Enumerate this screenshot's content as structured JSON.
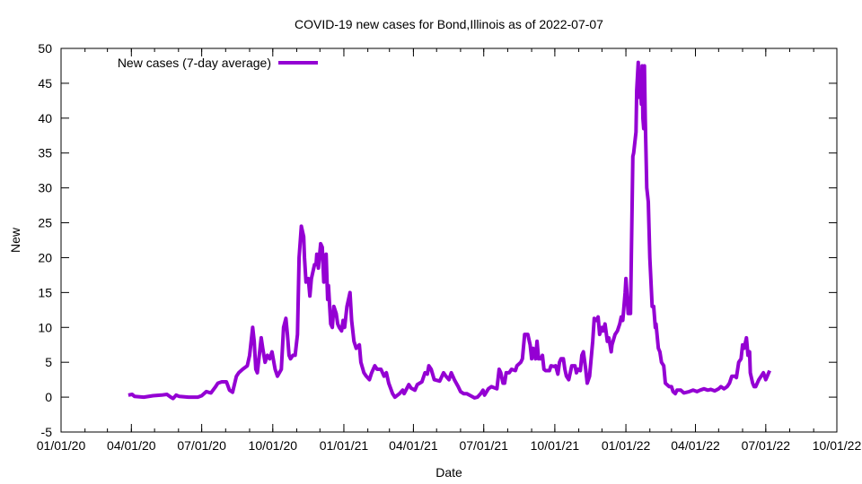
{
  "chart_data": {
    "type": "line",
    "title": "COVID-19 new cases for Bond,Illinois as of 2022-07-07",
    "xlabel": "Date",
    "ylabel": "New",
    "x_origin": "2020-01-01",
    "x_units": "days since 2020-01-01",
    "xlim": [
      0,
      1004
    ],
    "ylim": [
      -5,
      50
    ],
    "y_ticks": [
      -5,
      0,
      5,
      10,
      15,
      20,
      25,
      30,
      35,
      40,
      45,
      50
    ],
    "x_ticks": [
      {
        "label": "01/01/20",
        "day": 0
      },
      {
        "label": "04/01/20",
        "day": 91
      },
      {
        "label": "07/01/20",
        "day": 182
      },
      {
        "label": "10/01/20",
        "day": 274
      },
      {
        "label": "01/01/21",
        "day": 366
      },
      {
        "label": "04/01/21",
        "day": 456
      },
      {
        "label": "07/01/21",
        "day": 547
      },
      {
        "label": "10/01/21",
        "day": 639
      },
      {
        "label": "01/01/22",
        "day": 731
      },
      {
        "label": "04/01/22",
        "day": 821
      },
      {
        "label": "07/01/22",
        "day": 912
      },
      {
        "label": "10/01/22",
        "day": 1004
      }
    ],
    "grid": false,
    "legend_position": "top-left",
    "series": [
      {
        "name": "New cases (7-day average)",
        "color": "#9400d3",
        "x": [
          87,
          92,
          95,
          107,
          119,
          130,
          137,
          142,
          145,
          149,
          153,
          165,
          177,
          182,
          188,
          194,
          200,
          203,
          208,
          214,
          218,
          222,
          227,
          230,
          235,
          241,
          244,
          248,
          250,
          252,
          254,
          259,
          261,
          264,
          267,
          270,
          273,
          277,
          280,
          285,
          288,
          291,
          293,
          295,
          297,
          300,
          303,
          306,
          308,
          311,
          314,
          315,
          317,
          320,
          322,
          324,
          328,
          330,
          331,
          333,
          336,
          338,
          340,
          343,
          345,
          346,
          349,
          351,
          353,
          356,
          358,
          360,
          363,
          365,
          367,
          370,
          374,
          376,
          379,
          382,
          386,
          388,
          392,
          395,
          399,
          402,
          406,
          409,
          414,
          418,
          421,
          424,
          429,
          432,
          438,
          442,
          444,
          450,
          453,
          458,
          461,
          467,
          471,
          474,
          476,
          479,
          483,
          490,
          495,
          498,
          502,
          505,
          509,
          514,
          517,
          521,
          525,
          530,
          535,
          539,
          543,
          546,
          548,
          553,
          557,
          564,
          567,
          569,
          572,
          574,
          576,
          580,
          583,
          588,
          590,
          595,
          597,
          600,
          604,
          607,
          609,
          611,
          614,
          616,
          618,
          621,
          623,
          625,
          627,
          632,
          634,
          638,
          640,
          643,
          645,
          647,
          650,
          652,
          654,
          657,
          661,
          665,
          667,
          669,
          672,
          674,
          676,
          679,
          681,
          684,
          688,
          690,
          693,
          695,
          697,
          700,
          702,
          704,
          707,
          709,
          712,
          713,
          717,
          720,
          723,
          725,
          727,
          730,
          731,
          732,
          734,
          737,
          738,
          740,
          741,
          744,
          745,
          747,
          748,
          749,
          751,
          752,
          753,
          754,
          755,
          756,
          758,
          760,
          762,
          765,
          767,
          769,
          770,
          773,
          775,
          777,
          780,
          782,
          787,
          790,
          792,
          795,
          797,
          802,
          806,
          813,
          818,
          823,
          827,
          832,
          837,
          841,
          846,
          851,
          854,
          858,
          862,
          865,
          868,
          872,
          874,
          877,
          880,
          882,
          884,
          887,
          889,
          891,
          892,
          895,
          897,
          899,
          903,
          906,
          909,
          912,
          914,
          917
        ],
        "y": [
          0.3,
          0.4,
          0.1,
          0,
          0.2,
          0.3,
          0.4,
          0,
          -0.2,
          0.3,
          0.1,
          0,
          0,
          0.2,
          0.8,
          0.6,
          1.5,
          2,
          2.2,
          2.2,
          1,
          0.7,
          3,
          3.5,
          4,
          4.5,
          6,
          10,
          8,
          4,
          3.5,
          8.5,
          7,
          5,
          6,
          5.5,
          6.5,
          4,
          3,
          4,
          10,
          11.3,
          9,
          6,
          5.5,
          6,
          6,
          9,
          20,
          24.5,
          23,
          20,
          16.5,
          17,
          14.5,
          17,
          19,
          19,
          20.5,
          18.5,
          22,
          21.5,
          16.5,
          20.5,
          14,
          16,
          10.5,
          10,
          13,
          12,
          10.5,
          10,
          9.5,
          11,
          10,
          13,
          15,
          11,
          8,
          7,
          7.5,
          5,
          3.5,
          3,
          2.5,
          3.5,
          4.5,
          4,
          4,
          3,
          3.5,
          2,
          0.5,
          0,
          0.5,
          1,
          0.5,
          1.8,
          1.3,
          1,
          1.8,
          2.2,
          3.5,
          3.3,
          4.5,
          4,
          2.5,
          2.3,
          3.5,
          3,
          2.5,
          3.5,
          2.5,
          1.5,
          0.8,
          0.5,
          0.5,
          0.2,
          -0.1,
          0,
          0.5,
          1,
          0.3,
          1.2,
          1.5,
          1.2,
          4,
          3.5,
          2,
          2,
          3.5,
          3.5,
          4,
          3.8,
          4.5,
          5,
          5.5,
          9,
          9,
          7.5,
          5.5,
          7,
          5.5,
          8,
          5.5,
          5.5,
          6,
          4,
          3.8,
          3.8,
          4.5,
          4.4,
          4.5,
          3.3,
          5,
          5.5,
          5.5,
          4,
          3,
          2.5,
          4.5,
          4.5,
          3.5,
          4,
          3.8,
          6,
          6.5,
          4,
          2,
          3,
          8,
          11.3,
          11,
          11.5,
          9,
          10,
          9.5,
          10.5,
          8,
          8.5,
          6.5,
          7.5,
          9,
          9.5,
          10.5,
          11.5,
          11,
          15,
          17,
          15.5,
          12,
          12,
          20,
          34.5,
          35,
          38,
          44,
          48,
          43,
          46,
          42,
          47.5,
          40,
          38.5,
          47.5,
          40,
          30,
          28,
          20,
          13,
          13,
          10,
          10.5,
          7,
          6.5,
          5,
          4.5,
          2,
          1.5,
          1.5,
          0.8,
          0.5,
          1,
          1,
          0.6,
          0.8,
          1,
          0.8,
          1,
          1.2,
          1,
          1.1,
          0.9,
          1.2,
          1.5,
          1.2,
          1.5,
          2,
          3,
          3,
          2.8,
          5,
          5.5,
          7.5,
          7,
          8.5,
          6,
          6.5,
          3.5,
          2,
          1.5,
          1.5,
          2.5,
          3,
          3.5,
          2.5,
          3,
          3.8
        ]
      }
    ]
  }
}
